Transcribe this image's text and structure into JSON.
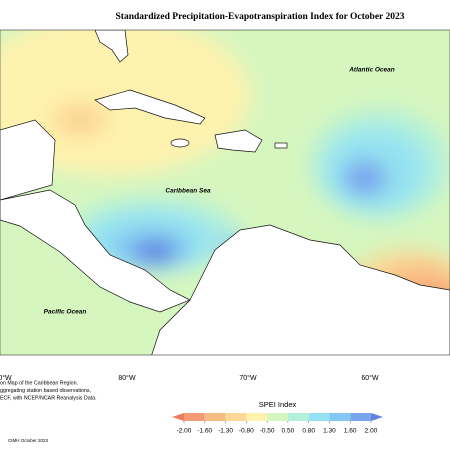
{
  "title": "Standardized Precipitation-Evapotranspiration Index for October 2023",
  "map": {
    "labels": [
      "Atlantic Ocean",
      "Caribbean Sea",
      "Pacific Ocean"
    ],
    "longitudes": [
      "0°W",
      "80°W",
      "70°W",
      "60°W"
    ]
  },
  "legend": {
    "title": "SPEI Index",
    "ticks": [
      {
        "value": -2,
        "label": "-2.00"
      },
      {
        "value": -1.6,
        "label": "-1.60"
      },
      {
        "value": -1.3,
        "label": "-1.30"
      },
      {
        "value": -0.8,
        "label": "-0.80"
      },
      {
        "value": -0.5,
        "label": "-0.50"
      },
      {
        "value": 0.5,
        "label": "0.50"
      },
      {
        "value": 0.8,
        "label": "0.80"
      },
      {
        "value": 1.3,
        "label": "1.30"
      },
      {
        "value": 1.6,
        "label": "1.60"
      },
      {
        "value": 2,
        "label": "2.00"
      }
    ],
    "colors": [
      "#ee7a5e",
      "#f49a74",
      "#f8bb82",
      "#fcd896",
      "#fff2ae",
      "#d6f6bf",
      "#b2f0dc",
      "#94e2f2",
      "#84c8f2",
      "#7aa6ee",
      "#5f82e0"
    ]
  },
  "footnote": {
    "lines": [
      "on Map of the Caribbean Region.",
      "ggregating station based observations,",
      "ECF, with NCEP/NCAR Reanalysis Data."
    ],
    "credit": "CIMH October 2023"
  }
}
